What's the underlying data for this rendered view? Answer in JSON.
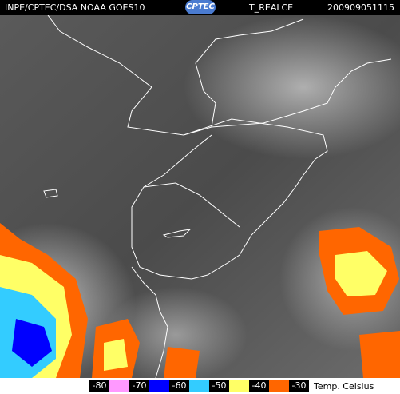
{
  "header": {
    "source": "INPE/CPTEC/DSA NOAA GOES10",
    "logo": "CPTEC",
    "product": "T_REALCE",
    "timestamp": "200909051115"
  },
  "legend": {
    "labels": [
      "-80",
      "-70",
      "-60",
      "-50",
      "-40",
      "-30"
    ],
    "colors": [
      "#ff99ff",
      "#0000ff",
      "#33ccff",
      "#ffff66",
      "#ff6600"
    ],
    "unit": "Temp. Celsius"
  }
}
